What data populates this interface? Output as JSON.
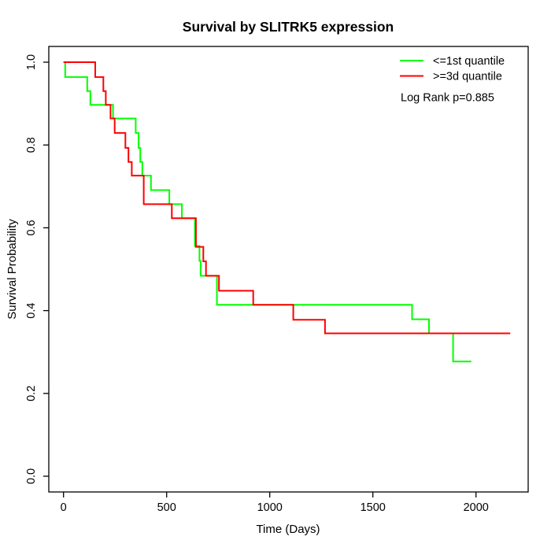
{
  "chart": {
    "title": "Survival by SLITRK5 expression",
    "xlabel": "Time (Days)",
    "ylabel": "Survival Probability",
    "annotation": "Log Rank p=0.885",
    "legend": {
      "entries": [
        {
          "label": "<=1st quantile",
          "color": "#00ff00"
        },
        {
          "label": ">=3d quantile",
          "color": "#ff0000"
        }
      ]
    }
  },
  "chart_data": {
    "type": "line",
    "subtype": "kaplan-meier-step",
    "title": "Survival by SLITRK5 expression",
    "xlabel": "Time (Days)",
    "ylabel": "Survival Probability",
    "annotation": "Log Rank p=0.885",
    "legend_position": "topright",
    "grid": false,
    "xlim": [
      0,
      2200
    ],
    "ylim": [
      0.0,
      1.0
    ],
    "x_ticks": [
      0,
      500,
      1000,
      1500,
      2000
    ],
    "x_tick_labels": [
      "0",
      "500",
      "1000",
      "1500",
      "2000"
    ],
    "y_ticks": [
      0.0,
      0.2,
      0.4,
      0.6,
      0.8,
      1.0
    ],
    "y_tick_labels": [
      "0.0",
      "0.2",
      "0.4",
      "0.6",
      "0.8",
      "1.0"
    ],
    "series": [
      {
        "name": "<=1st quantile",
        "color": "#00ff00",
        "end_day": 1977,
        "points": [
          [
            0,
            1.0
          ],
          [
            8,
            0.964
          ],
          [
            115,
            0.93
          ],
          [
            130,
            0.897
          ],
          [
            240,
            0.864
          ],
          [
            350,
            0.829
          ],
          [
            364,
            0.793
          ],
          [
            372,
            0.759
          ],
          [
            382,
            0.726
          ],
          [
            424,
            0.691
          ],
          [
            513,
            0.657
          ],
          [
            574,
            0.623
          ],
          [
            637,
            0.556
          ],
          [
            659,
            0.52
          ],
          [
            665,
            0.484
          ],
          [
            744,
            0.414
          ],
          [
            1690,
            0.379
          ],
          [
            1772,
            0.345
          ],
          [
            1889,
            0.277
          ]
        ]
      },
      {
        "name": ">=3d quantile",
        "color": "#ff0000",
        "end_day": 2166,
        "points": [
          [
            0,
            1.0
          ],
          [
            154,
            0.964
          ],
          [
            193,
            0.93
          ],
          [
            205,
            0.897
          ],
          [
            228,
            0.864
          ],
          [
            248,
            0.829
          ],
          [
            300,
            0.793
          ],
          [
            315,
            0.759
          ],
          [
            331,
            0.726
          ],
          [
            389,
            0.657
          ],
          [
            525,
            0.623
          ],
          [
            642,
            0.554
          ],
          [
            678,
            0.519
          ],
          [
            691,
            0.484
          ],
          [
            754,
            0.448
          ],
          [
            920,
            0.414
          ],
          [
            1114,
            0.378
          ],
          [
            1268,
            0.345
          ]
        ]
      }
    ]
  }
}
